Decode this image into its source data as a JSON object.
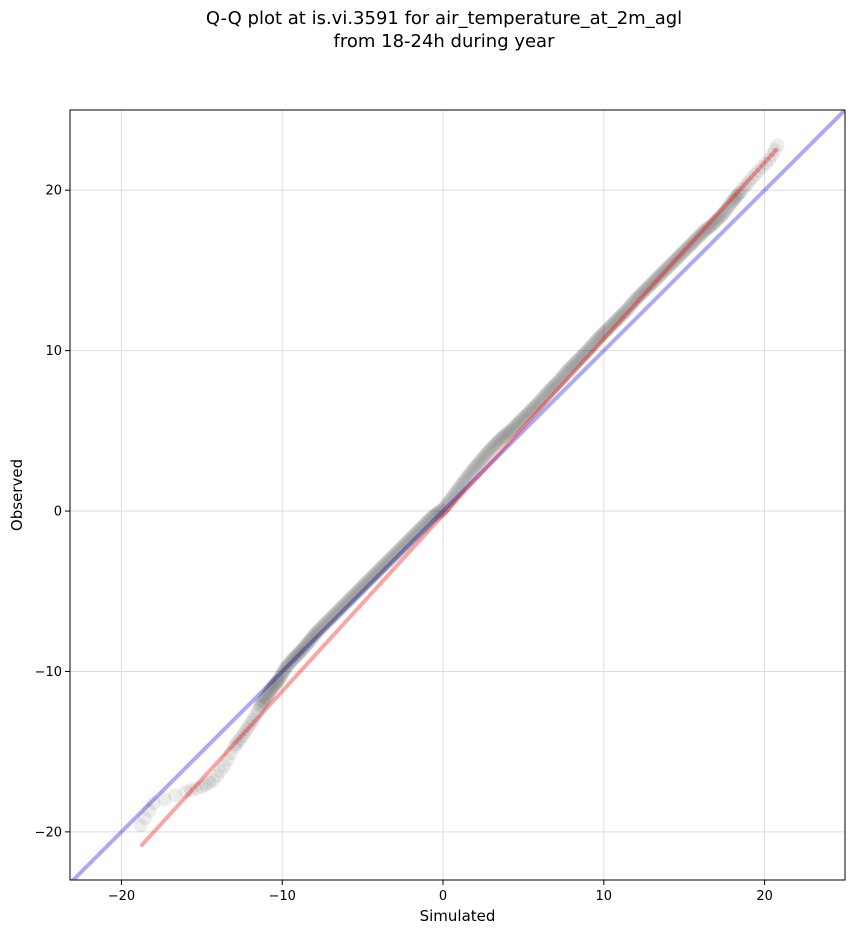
{
  "chart_data": {
    "type": "scatter",
    "title_line1": "Q-Q plot at is.vi.3591 for air_temperature_at_2m_agl",
    "title_line2": "from 18-24h during year",
    "xlabel": "Simulated",
    "ylabel": "Observed",
    "xlim": [
      -23.2,
      25.0
    ],
    "ylim": [
      -23.0,
      25.0
    ],
    "xticks": [
      -20,
      -10,
      0,
      10,
      20
    ],
    "yticks": [
      -20,
      -10,
      0,
      10,
      20
    ],
    "xtick_labels": [
      "−20",
      "−10",
      "0",
      "10",
      "20"
    ],
    "ytick_labels": [
      "−20",
      "−10",
      "0",
      "10",
      "20"
    ],
    "grid": true,
    "colors": {
      "points": "#000000",
      "identity_line": "#0000dd",
      "fit_line": "#ee0000",
      "grid": "#dddddd"
    },
    "identity_line": {
      "x": [
        -23.2,
        25.0
      ],
      "y": [
        -23.2,
        25.0
      ]
    },
    "fit_line": {
      "x": [
        -18.8,
        20.8
      ],
      "y": [
        -20.9,
        22.6
      ]
    },
    "quantiles": {
      "simulated": [
        -18.8,
        -18.0,
        -16.0,
        -15.0,
        -14.3,
        -13.6,
        -13.0,
        -12.6,
        -12.2,
        -11.8,
        -11.4,
        -11.0,
        -10.6,
        -10.2,
        -9.8,
        -9.3,
        -8.8,
        -8.3,
        -7.8,
        -7.2,
        -6.6,
        -6.0,
        -5.4,
        -4.8,
        -4.2,
        -3.6,
        -3.0,
        -2.4,
        -1.8,
        -1.2,
        -0.6,
        0.0,
        0.6,
        1.2,
        1.8,
        2.4,
        3.0,
        3.6,
        4.2,
        4.8,
        5.4,
        6.0,
        6.6,
        7.2,
        7.8,
        8.4,
        9.0,
        9.6,
        10.2,
        10.8,
        11.4,
        12.0,
        12.6,
        13.2,
        13.8,
        14.4,
        15.0,
        15.6,
        16.2,
        16.8,
        17.4,
        18.0,
        18.5,
        19.0,
        19.6,
        20.3,
        20.8
      ],
      "observed": [
        -19.6,
        -18.2,
        -17.5,
        -17.2,
        -16.8,
        -15.9,
        -14.7,
        -14.2,
        -13.6,
        -13.0,
        -12.2,
        -11.6,
        -11.0,
        -10.5,
        -9.8,
        -9.2,
        -8.7,
        -8.1,
        -7.5,
        -6.9,
        -6.3,
        -5.7,
        -5.1,
        -4.5,
        -3.9,
        -3.3,
        -2.7,
        -2.1,
        -1.5,
        -0.9,
        -0.3,
        0.1,
        0.9,
        1.7,
        2.5,
        3.2,
        3.9,
        4.5,
        5.0,
        5.6,
        6.2,
        6.8,
        7.5,
        8.1,
        8.8,
        9.4,
        10.0,
        10.7,
        11.3,
        11.9,
        12.5,
        13.2,
        13.8,
        14.4,
        15.0,
        15.6,
        16.2,
        16.8,
        17.4,
        17.9,
        18.5,
        19.3,
        19.9,
        20.5,
        21.2,
        21.9,
        22.8
      ]
    }
  }
}
